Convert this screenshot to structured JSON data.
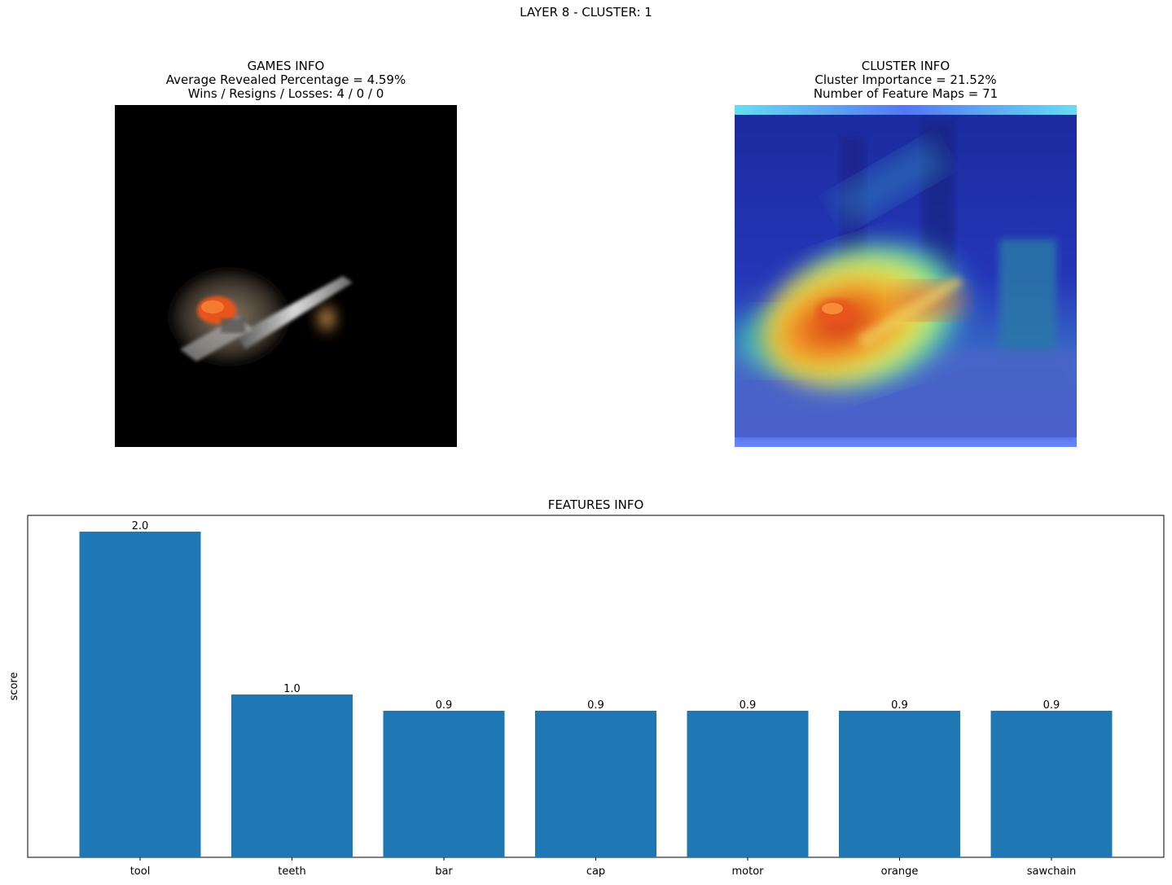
{
  "figure": {
    "suptitle": "LAYER 8 - CLUSTER: 1"
  },
  "games_info": {
    "title": "GAMES INFO",
    "line1": "Average Revealed Percentage = 4.59%",
    "line2": "Wins / Resigns / Losses: 4 / 0 / 0"
  },
  "cluster_info": {
    "title": "CLUSTER INFO",
    "line1": "Cluster Importance = 21.52%",
    "line2": "Number of Feature Maps = 71"
  },
  "chart_data": {
    "type": "bar",
    "title": "FEATURES INFO",
    "xlabel": "",
    "ylabel": "score",
    "categories": [
      "tool",
      "teeth",
      "bar",
      "cap",
      "motor",
      "orange",
      "sawchain"
    ],
    "values": [
      2.0,
      1.0,
      0.9,
      0.9,
      0.9,
      0.9,
      0.9
    ],
    "data_labels": [
      "2.0",
      "1.0",
      "0.9",
      "0.9",
      "0.9",
      "0.9",
      "0.9"
    ],
    "ylim": [
      0,
      2.1
    ],
    "bar_color": "#1f77b4",
    "y_ticks_shown": false,
    "grid": false
  }
}
